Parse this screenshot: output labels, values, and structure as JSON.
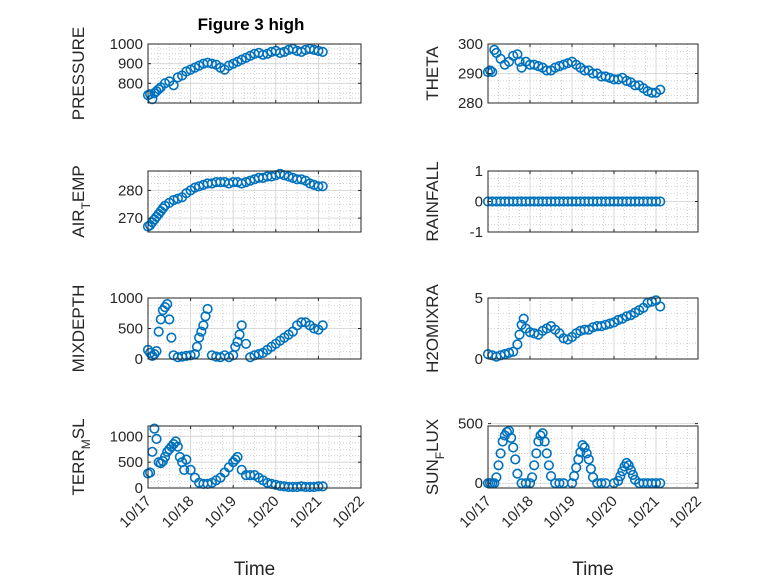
{
  "figure": {
    "title": "Figure 3 high"
  },
  "chart_data": [
    {
      "type": "scatter",
      "ylabel": "PRESSURE",
      "title": "Figure 3 high",
      "xlim": [
        0,
        5
      ],
      "ylim": [
        700,
        1000
      ],
      "yticks": [
        800,
        900,
        1000
      ],
      "xticks": [
        "10/17",
        "10/18",
        "10/19",
        "10/20",
        "10/21",
        "10/22"
      ],
      "grid": true,
      "x": [
        0,
        0.05,
        0.1,
        0.15,
        0.2,
        0.25,
        0.3,
        0.4,
        0.5,
        0.6,
        0.7,
        0.8,
        0.9,
        1.0,
        1.1,
        1.2,
        1.3,
        1.4,
        1.5,
        1.6,
        1.7,
        1.8,
        1.9,
        2.0,
        2.1,
        2.2,
        2.3,
        2.4,
        2.5,
        2.6,
        2.7,
        2.8,
        2.9,
        3.0,
        3.1,
        3.2,
        3.3,
        3.4,
        3.5,
        3.6,
        3.7,
        3.8,
        3.9,
        4.0,
        4.1
      ],
      "y": [
        740,
        745,
        720,
        750,
        760,
        770,
        780,
        800,
        810,
        790,
        830,
        840,
        860,
        870,
        880,
        890,
        900,
        905,
        900,
        895,
        880,
        870,
        890,
        900,
        910,
        920,
        930,
        940,
        950,
        955,
        945,
        950,
        960,
        965,
        955,
        960,
        970,
        975,
        965,
        960,
        970,
        975,
        970,
        965,
        960
      ],
      "color": "#0072BD"
    },
    {
      "type": "scatter",
      "ylabel": "THETA",
      "xlim": [
        0,
        5
      ],
      "ylim": [
        280,
        300
      ],
      "yticks": [
        280,
        290,
        300
      ],
      "xticks": [
        "10/17",
        "10/18",
        "10/19",
        "10/20",
        "10/21",
        "10/22"
      ],
      "grid": true,
      "x": [
        0,
        0.05,
        0.1,
        0.15,
        0.2,
        0.3,
        0.4,
        0.5,
        0.6,
        0.7,
        0.75,
        0.8,
        0.9,
        1.0,
        1.1,
        1.2,
        1.3,
        1.4,
        1.5,
        1.6,
        1.7,
        1.8,
        1.9,
        2.0,
        2.1,
        2.2,
        2.3,
        2.4,
        2.5,
        2.6,
        2.7,
        2.8,
        2.9,
        3.0,
        3.1,
        3.2,
        3.3,
        3.4,
        3.5,
        3.6,
        3.7,
        3.8,
        3.9,
        4.0,
        4.1
      ],
      "y": [
        290.5,
        291,
        290.5,
        298,
        297,
        295,
        293,
        294,
        296,
        296.5,
        294,
        292,
        294,
        293,
        293,
        292.5,
        292,
        291,
        291,
        292,
        292.5,
        293,
        293.5,
        294,
        293,
        292,
        291,
        291,
        290,
        290,
        289,
        289,
        288.5,
        288,
        288,
        288.5,
        287.5,
        287,
        286,
        286,
        285,
        284,
        283.5,
        283.5,
        284.5
      ],
      "color": "#0072BD"
    },
    {
      "type": "scatter",
      "ylabel": "AIR_TEMP",
      "xlim": [
        0,
        5
      ],
      "ylim": [
        265,
        287
      ],
      "yticks": [
        270,
        280
      ],
      "xticks": [
        "10/17",
        "10/18",
        "10/19",
        "10/20",
        "10/21",
        "10/22"
      ],
      "grid": true,
      "x": [
        0,
        0.05,
        0.1,
        0.15,
        0.2,
        0.25,
        0.3,
        0.35,
        0.4,
        0.5,
        0.6,
        0.7,
        0.8,
        0.9,
        1.0,
        1.1,
        1.2,
        1.3,
        1.4,
        1.5,
        1.6,
        1.7,
        1.8,
        1.9,
        2.0,
        2.1,
        2.2,
        2.3,
        2.4,
        2.5,
        2.6,
        2.7,
        2.8,
        2.9,
        3.0,
        3.1,
        3.2,
        3.3,
        3.4,
        3.5,
        3.6,
        3.7,
        3.8,
        3.9,
        4.0,
        4.1
      ],
      "y": [
        267,
        267.5,
        268.5,
        269.5,
        270.5,
        271.5,
        272.5,
        273.5,
        274.5,
        275.5,
        276.5,
        277,
        277.5,
        279,
        280,
        281,
        281.5,
        282,
        282.5,
        282.5,
        283,
        283,
        283,
        282.5,
        283,
        283,
        282.5,
        283,
        283.5,
        284,
        284.5,
        284.5,
        285,
        285,
        285.5,
        286,
        285.5,
        285,
        284.5,
        284,
        284,
        283.5,
        282.5,
        282,
        281.5,
        281.5
      ],
      "color": "#0072BD"
    },
    {
      "type": "scatter",
      "ylabel": "RAINFALL",
      "xlim": [
        0,
        5
      ],
      "ylim": [
        -1,
        1
      ],
      "yticks": [
        -1,
        0,
        1
      ],
      "xticks": [
        "10/17",
        "10/18",
        "10/19",
        "10/20",
        "10/21",
        "10/22"
      ],
      "grid": true,
      "x": [
        0,
        0.1,
        0.2,
        0.3,
        0.4,
        0.5,
        0.6,
        0.7,
        0.8,
        0.9,
        1.0,
        1.1,
        1.2,
        1.3,
        1.4,
        1.5,
        1.6,
        1.7,
        1.8,
        1.9,
        2.0,
        2.1,
        2.2,
        2.3,
        2.4,
        2.5,
        2.6,
        2.7,
        2.8,
        2.9,
        3.0,
        3.1,
        3.2,
        3.3,
        3.4,
        3.5,
        3.6,
        3.7,
        3.8,
        3.9,
        4.0,
        4.1
      ],
      "y": [
        0,
        0,
        0,
        0,
        0,
        0,
        0,
        0,
        0,
        0,
        0,
        0,
        0,
        0,
        0,
        0,
        0,
        0,
        0,
        0,
        0,
        0,
        0,
        0,
        0,
        0,
        0,
        0,
        0,
        0,
        0,
        0,
        0,
        0,
        0,
        0,
        0,
        0,
        0,
        0,
        0,
        0
      ],
      "color": "#0072BD"
    },
    {
      "type": "scatter",
      "ylabel": "MIXDEPTH",
      "xlim": [
        0,
        5
      ],
      "ylim": [
        0,
        1000
      ],
      "yticks": [
        0,
        500,
        1000
      ],
      "xticks": [
        "10/17",
        "10/18",
        "10/19",
        "10/20",
        "10/21",
        "10/22"
      ],
      "grid": true,
      "x": [
        0,
        0.05,
        0.1,
        0.15,
        0.2,
        0.25,
        0.3,
        0.35,
        0.4,
        0.45,
        0.5,
        0.55,
        0.6,
        0.7,
        0.8,
        0.9,
        1.0,
        1.1,
        1.15,
        1.2,
        1.25,
        1.3,
        1.35,
        1.4,
        1.5,
        1.6,
        1.7,
        1.8,
        1.9,
        2.0,
        2.05,
        2.1,
        2.15,
        2.2,
        2.3,
        2.4,
        2.5,
        2.6,
        2.7,
        2.8,
        2.9,
        3.0,
        3.1,
        3.2,
        3.3,
        3.4,
        3.5,
        3.6,
        3.7,
        3.8,
        3.9,
        4.0,
        4.1
      ],
      "y": [
        150,
        100,
        50,
        80,
        130,
        450,
        650,
        800,
        850,
        900,
        650,
        350,
        60,
        30,
        40,
        50,
        60,
        80,
        200,
        350,
        450,
        550,
        700,
        820,
        60,
        40,
        30,
        60,
        30,
        60,
        200,
        280,
        400,
        550,
        250,
        30,
        60,
        80,
        100,
        150,
        200,
        250,
        300,
        350,
        400,
        450,
        550,
        600,
        600,
        550,
        500,
        480,
        550
      ],
      "color": "#0072BD"
    },
    {
      "type": "scatter",
      "ylabel": "H2OMIXRA",
      "xlim": [
        0,
        5
      ],
      "ylim": [
        0,
        5
      ],
      "yticks": [
        0,
        5
      ],
      "xticks": [
        "10/17",
        "10/18",
        "10/19",
        "10/20",
        "10/21",
        "10/22"
      ],
      "grid": true,
      "x": [
        0,
        0.1,
        0.2,
        0.3,
        0.4,
        0.5,
        0.6,
        0.7,
        0.75,
        0.8,
        0.85,
        0.9,
        1.0,
        1.1,
        1.2,
        1.3,
        1.4,
        1.5,
        1.6,
        1.7,
        1.8,
        1.9,
        2.0,
        2.1,
        2.2,
        2.3,
        2.4,
        2.5,
        2.6,
        2.7,
        2.8,
        2.9,
        3.0,
        3.1,
        3.2,
        3.3,
        3.4,
        3.5,
        3.6,
        3.7,
        3.8,
        3.9,
        4.0,
        4.1
      ],
      "y": [
        0.4,
        0.3,
        0.2,
        0.3,
        0.4,
        0.5,
        0.6,
        1.2,
        2.0,
        2.8,
        3.3,
        2.5,
        2.2,
        2.1,
        2.0,
        2.3,
        2.5,
        2.7,
        2.4,
        2.1,
        1.7,
        1.6,
        1.8,
        2.1,
        2.3,
        2.4,
        2.4,
        2.6,
        2.7,
        2.7,
        2.8,
        2.9,
        3.0,
        3.2,
        3.3,
        3.5,
        3.6,
        3.8,
        4.0,
        4.2,
        4.6,
        4.7,
        4.8,
        4.3
      ],
      "color": "#0072BD"
    },
    {
      "type": "scatter",
      "ylabel": "TERR_MSL",
      "xlim": [
        0,
        5
      ],
      "ylim": [
        0,
        1200
      ],
      "yticks": [
        0,
        500,
        1000
      ],
      "xticks": [
        "10/17",
        "10/18",
        "10/19",
        "10/20",
        "10/21",
        "10/22"
      ],
      "grid": true,
      "x": [
        0,
        0.05,
        0.1,
        0.15,
        0.2,
        0.25,
        0.3,
        0.35,
        0.4,
        0.45,
        0.5,
        0.55,
        0.6,
        0.65,
        0.7,
        0.75,
        0.8,
        0.85,
        0.9,
        1.0,
        1.1,
        1.2,
        1.3,
        1.4,
        1.5,
        1.6,
        1.7,
        1.8,
        1.9,
        2.0,
        2.05,
        2.1,
        2.2,
        2.3,
        2.4,
        2.5,
        2.6,
        2.7,
        2.8,
        2.9,
        3.0,
        3.1,
        3.2,
        3.3,
        3.4,
        3.5,
        3.6,
        3.7,
        3.8,
        3.9,
        4.0,
        4.1
      ],
      "y": [
        280,
        300,
        700,
        1150,
        950,
        500,
        480,
        520,
        600,
        700,
        750,
        800,
        850,
        900,
        800,
        600,
        500,
        350,
        550,
        350,
        200,
        100,
        80,
        80,
        100,
        150,
        200,
        300,
        400,
        500,
        550,
        600,
        350,
        250,
        250,
        250,
        200,
        150,
        100,
        80,
        60,
        40,
        30,
        20,
        20,
        20,
        30,
        20,
        20,
        20,
        30,
        30
      ],
      "color": "#0072BD"
    },
    {
      "type": "scatter",
      "ylabel": "SUN_FLUX",
      "xlim": [
        0,
        5
      ],
      "ylim": [
        -40,
        480
      ],
      "yticks": [
        0,
        500
      ],
      "xticks": [
        "10/17",
        "10/18",
        "10/19",
        "10/20",
        "10/21",
        "10/22"
      ],
      "grid": true,
      "x": [
        0,
        0.05,
        0.1,
        0.15,
        0.2,
        0.25,
        0.3,
        0.35,
        0.4,
        0.45,
        0.5,
        0.55,
        0.6,
        0.65,
        0.7,
        0.8,
        0.9,
        1.0,
        1.05,
        1.1,
        1.15,
        1.2,
        1.25,
        1.3,
        1.35,
        1.4,
        1.45,
        1.5,
        1.6,
        1.7,
        1.8,
        2.0,
        2.05,
        2.1,
        2.15,
        2.2,
        2.25,
        2.3,
        2.35,
        2.4,
        2.45,
        2.5,
        2.6,
        2.7,
        2.8,
        3.0,
        3.1,
        3.15,
        3.2,
        3.25,
        3.3,
        3.35,
        3.4,
        3.45,
        3.5,
        3.6,
        3.7,
        3.8,
        3.9,
        4.0,
        4.1
      ],
      "y": [
        0,
        0,
        0,
        0,
        50,
        150,
        250,
        350,
        400,
        430,
        440,
        380,
        300,
        200,
        80,
        0,
        0,
        0,
        50,
        150,
        250,
        350,
        400,
        420,
        350,
        250,
        150,
        60,
        0,
        0,
        0,
        0,
        60,
        130,
        200,
        260,
        320,
        300,
        250,
        200,
        120,
        50,
        0,
        0,
        0,
        0,
        20,
        60,
        100,
        140,
        170,
        150,
        110,
        70,
        30,
        0,
        0,
        0,
        0,
        0,
        0
      ],
      "color": "#0072BD"
    }
  ],
  "axes_labels": {
    "xlabel_left": "Time",
    "xlabel_right": "Time",
    "ylabels": [
      {
        "main": "PRESSURE",
        "sub": ""
      },
      {
        "main": "THETA",
        "sub": ""
      },
      {
        "main": "AIR",
        "sub": "T",
        "tail": "EMP"
      },
      {
        "main": "RAINFALL",
        "sub": ""
      },
      {
        "main": "MIXDEPTH",
        "sub": ""
      },
      {
        "main": "H2OMIXRA",
        "sub": ""
      },
      {
        "main": "TERR",
        "sub": "M",
        "tail": "SL"
      },
      {
        "main": "SUN",
        "sub": "F",
        "tail": "LUX"
      }
    ]
  }
}
